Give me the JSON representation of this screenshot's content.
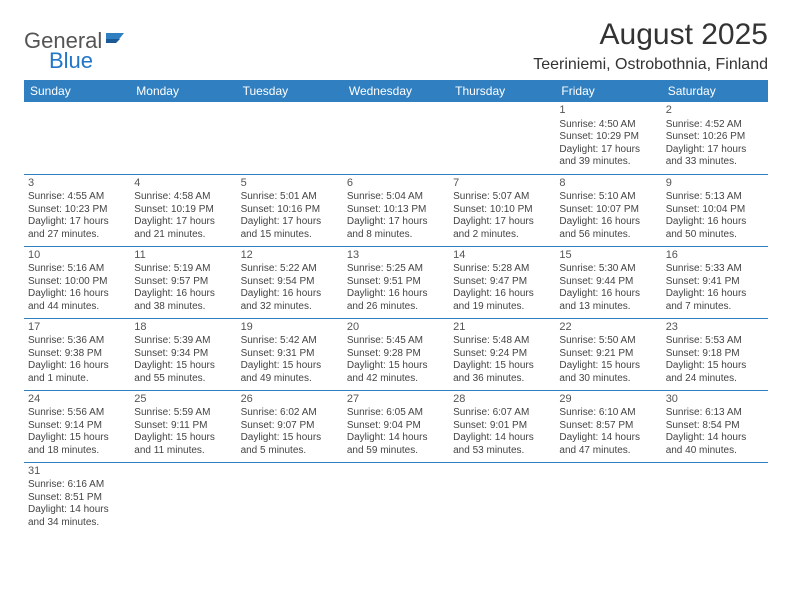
{
  "logo": {
    "name": "General",
    "suffix": "Blue"
  },
  "title": "August 2025",
  "location": "Teeriniemi, Ostrobothnia, Finland",
  "colors": {
    "header_bg": "#2f7fc1",
    "header_fg": "#ffffff",
    "accent": "#2176c7"
  },
  "weekdays": [
    "Sunday",
    "Monday",
    "Tuesday",
    "Wednesday",
    "Thursday",
    "Friday",
    "Saturday"
  ],
  "weeks": [
    [
      null,
      null,
      null,
      null,
      null,
      {
        "n": "1",
        "sr": "Sunrise: 4:50 AM",
        "ss": "Sunset: 10:29 PM",
        "dl1": "Daylight: 17 hours",
        "dl2": "and 39 minutes."
      },
      {
        "n": "2",
        "sr": "Sunrise: 4:52 AM",
        "ss": "Sunset: 10:26 PM",
        "dl1": "Daylight: 17 hours",
        "dl2": "and 33 minutes."
      }
    ],
    [
      {
        "n": "3",
        "sr": "Sunrise: 4:55 AM",
        "ss": "Sunset: 10:23 PM",
        "dl1": "Daylight: 17 hours",
        "dl2": "and 27 minutes."
      },
      {
        "n": "4",
        "sr": "Sunrise: 4:58 AM",
        "ss": "Sunset: 10:19 PM",
        "dl1": "Daylight: 17 hours",
        "dl2": "and 21 minutes."
      },
      {
        "n": "5",
        "sr": "Sunrise: 5:01 AM",
        "ss": "Sunset: 10:16 PM",
        "dl1": "Daylight: 17 hours",
        "dl2": "and 15 minutes."
      },
      {
        "n": "6",
        "sr": "Sunrise: 5:04 AM",
        "ss": "Sunset: 10:13 PM",
        "dl1": "Daylight: 17 hours",
        "dl2": "and 8 minutes."
      },
      {
        "n": "7",
        "sr": "Sunrise: 5:07 AM",
        "ss": "Sunset: 10:10 PM",
        "dl1": "Daylight: 17 hours",
        "dl2": "and 2 minutes."
      },
      {
        "n": "8",
        "sr": "Sunrise: 5:10 AM",
        "ss": "Sunset: 10:07 PM",
        "dl1": "Daylight: 16 hours",
        "dl2": "and 56 minutes."
      },
      {
        "n": "9",
        "sr": "Sunrise: 5:13 AM",
        "ss": "Sunset: 10:04 PM",
        "dl1": "Daylight: 16 hours",
        "dl2": "and 50 minutes."
      }
    ],
    [
      {
        "n": "10",
        "sr": "Sunrise: 5:16 AM",
        "ss": "Sunset: 10:00 PM",
        "dl1": "Daylight: 16 hours",
        "dl2": "and 44 minutes."
      },
      {
        "n": "11",
        "sr": "Sunrise: 5:19 AM",
        "ss": "Sunset: 9:57 PM",
        "dl1": "Daylight: 16 hours",
        "dl2": "and 38 minutes."
      },
      {
        "n": "12",
        "sr": "Sunrise: 5:22 AM",
        "ss": "Sunset: 9:54 PM",
        "dl1": "Daylight: 16 hours",
        "dl2": "and 32 minutes."
      },
      {
        "n": "13",
        "sr": "Sunrise: 5:25 AM",
        "ss": "Sunset: 9:51 PM",
        "dl1": "Daylight: 16 hours",
        "dl2": "and 26 minutes."
      },
      {
        "n": "14",
        "sr": "Sunrise: 5:28 AM",
        "ss": "Sunset: 9:47 PM",
        "dl1": "Daylight: 16 hours",
        "dl2": "and 19 minutes."
      },
      {
        "n": "15",
        "sr": "Sunrise: 5:30 AM",
        "ss": "Sunset: 9:44 PM",
        "dl1": "Daylight: 16 hours",
        "dl2": "and 13 minutes."
      },
      {
        "n": "16",
        "sr": "Sunrise: 5:33 AM",
        "ss": "Sunset: 9:41 PM",
        "dl1": "Daylight: 16 hours",
        "dl2": "and 7 minutes."
      }
    ],
    [
      {
        "n": "17",
        "sr": "Sunrise: 5:36 AM",
        "ss": "Sunset: 9:38 PM",
        "dl1": "Daylight: 16 hours",
        "dl2": "and 1 minute."
      },
      {
        "n": "18",
        "sr": "Sunrise: 5:39 AM",
        "ss": "Sunset: 9:34 PM",
        "dl1": "Daylight: 15 hours",
        "dl2": "and 55 minutes."
      },
      {
        "n": "19",
        "sr": "Sunrise: 5:42 AM",
        "ss": "Sunset: 9:31 PM",
        "dl1": "Daylight: 15 hours",
        "dl2": "and 49 minutes."
      },
      {
        "n": "20",
        "sr": "Sunrise: 5:45 AM",
        "ss": "Sunset: 9:28 PM",
        "dl1": "Daylight: 15 hours",
        "dl2": "and 42 minutes."
      },
      {
        "n": "21",
        "sr": "Sunrise: 5:48 AM",
        "ss": "Sunset: 9:24 PM",
        "dl1": "Daylight: 15 hours",
        "dl2": "and 36 minutes."
      },
      {
        "n": "22",
        "sr": "Sunrise: 5:50 AM",
        "ss": "Sunset: 9:21 PM",
        "dl1": "Daylight: 15 hours",
        "dl2": "and 30 minutes."
      },
      {
        "n": "23",
        "sr": "Sunrise: 5:53 AM",
        "ss": "Sunset: 9:18 PM",
        "dl1": "Daylight: 15 hours",
        "dl2": "and 24 minutes."
      }
    ],
    [
      {
        "n": "24",
        "sr": "Sunrise: 5:56 AM",
        "ss": "Sunset: 9:14 PM",
        "dl1": "Daylight: 15 hours",
        "dl2": "and 18 minutes."
      },
      {
        "n": "25",
        "sr": "Sunrise: 5:59 AM",
        "ss": "Sunset: 9:11 PM",
        "dl1": "Daylight: 15 hours",
        "dl2": "and 11 minutes."
      },
      {
        "n": "26",
        "sr": "Sunrise: 6:02 AM",
        "ss": "Sunset: 9:07 PM",
        "dl1": "Daylight: 15 hours",
        "dl2": "and 5 minutes."
      },
      {
        "n": "27",
        "sr": "Sunrise: 6:05 AM",
        "ss": "Sunset: 9:04 PM",
        "dl1": "Daylight: 14 hours",
        "dl2": "and 59 minutes."
      },
      {
        "n": "28",
        "sr": "Sunrise: 6:07 AM",
        "ss": "Sunset: 9:01 PM",
        "dl1": "Daylight: 14 hours",
        "dl2": "and 53 minutes."
      },
      {
        "n": "29",
        "sr": "Sunrise: 6:10 AM",
        "ss": "Sunset: 8:57 PM",
        "dl1": "Daylight: 14 hours",
        "dl2": "and 47 minutes."
      },
      {
        "n": "30",
        "sr": "Sunrise: 6:13 AM",
        "ss": "Sunset: 8:54 PM",
        "dl1": "Daylight: 14 hours",
        "dl2": "and 40 minutes."
      }
    ],
    [
      {
        "n": "31",
        "sr": "Sunrise: 6:16 AM",
        "ss": "Sunset: 8:51 PM",
        "dl1": "Daylight: 14 hours",
        "dl2": "and 34 minutes."
      },
      null,
      null,
      null,
      null,
      null,
      null
    ]
  ]
}
